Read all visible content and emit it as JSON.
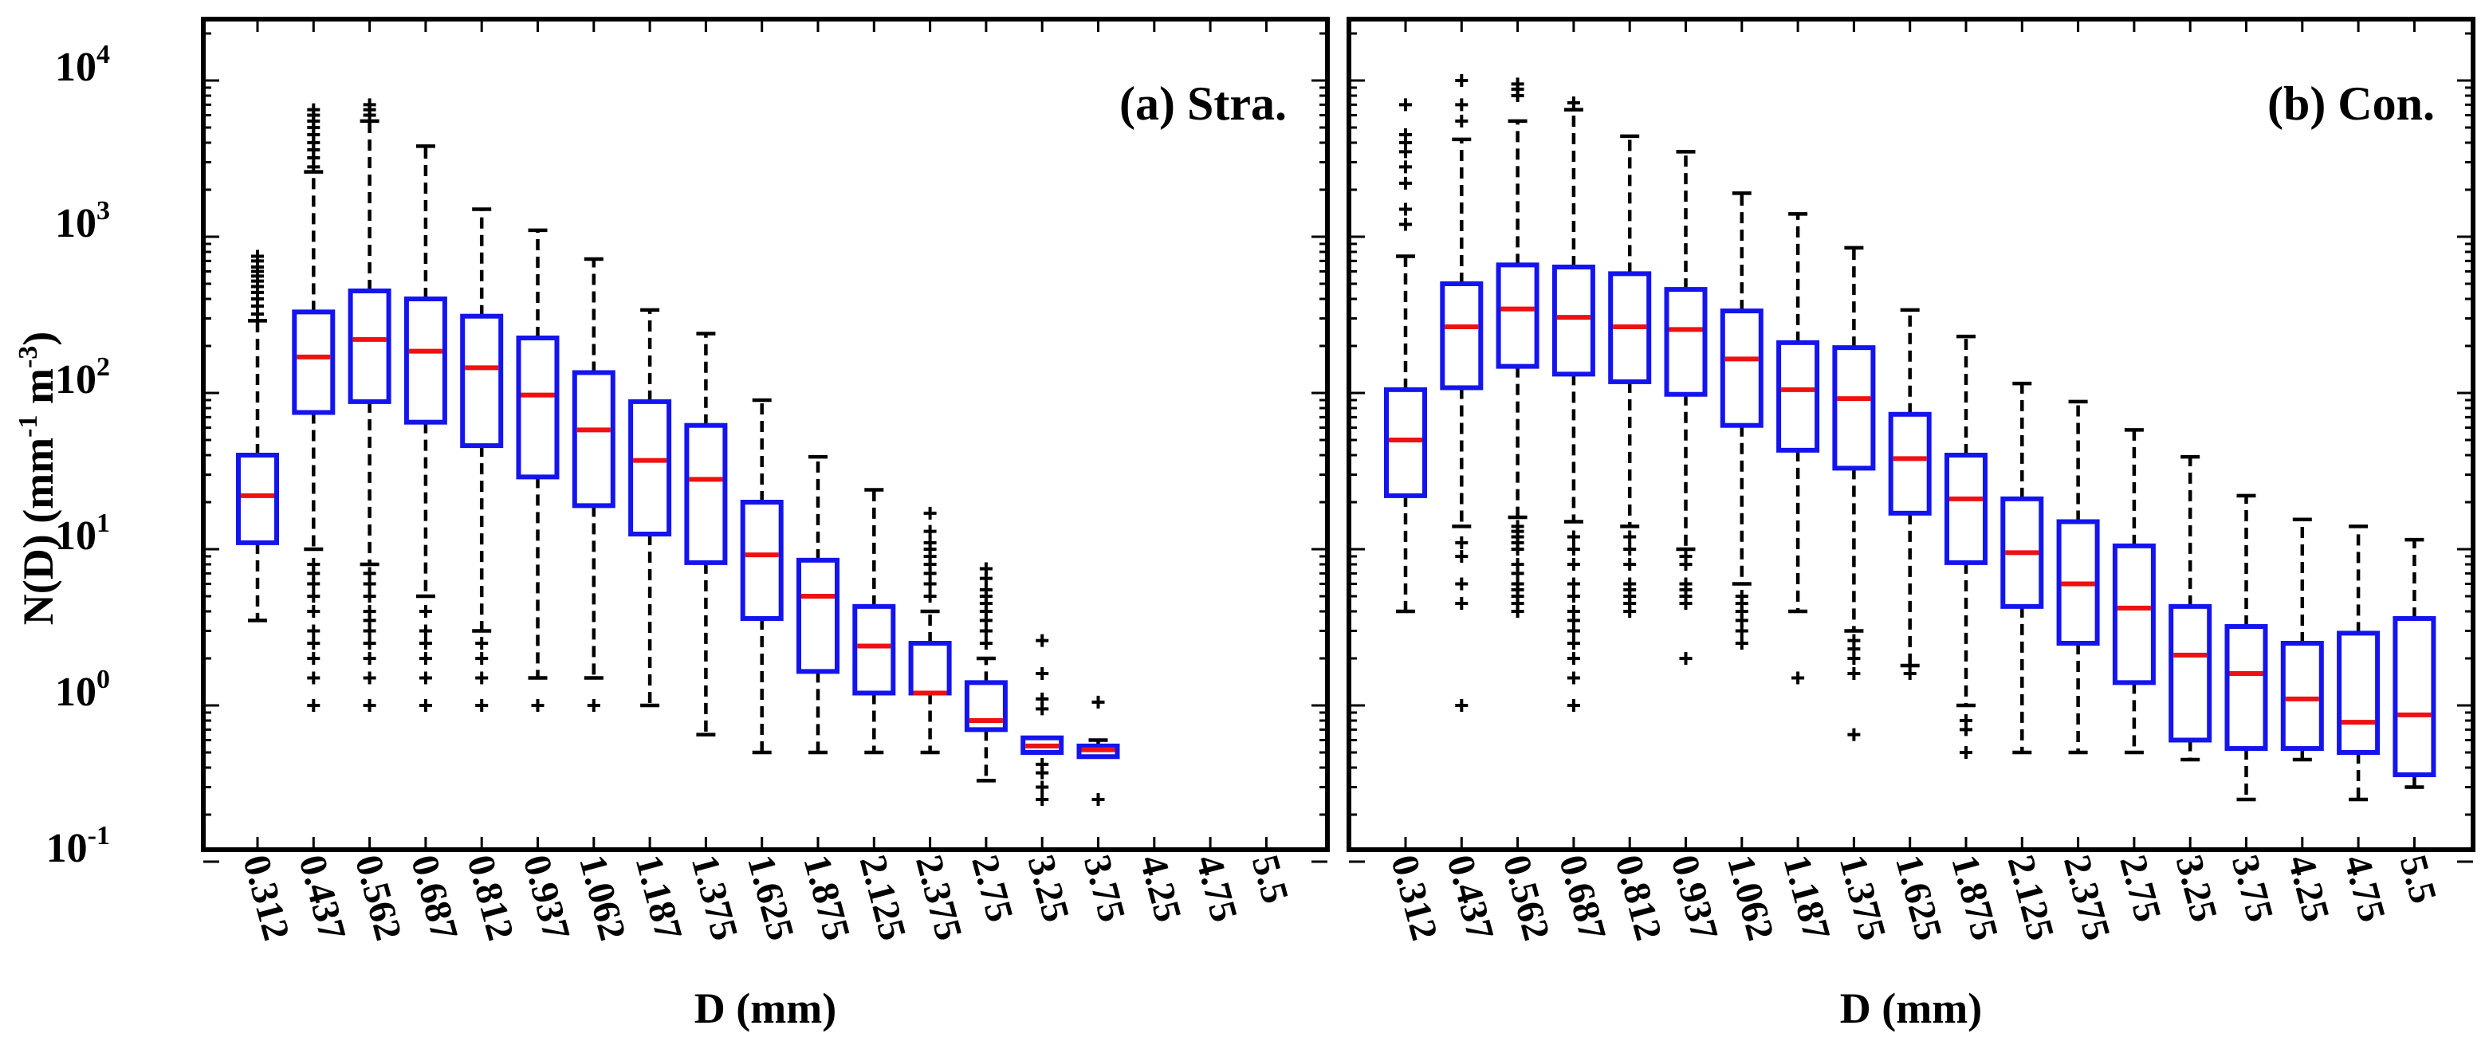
{
  "figure": {
    "ylabel_main": "N(D) (mm",
    "ylabel_exp1": "-1",
    "ylabel_mid": " m",
    "ylabel_exp2": "-3",
    "ylabel_close": ")",
    "y_tick_base": "10",
    "y_tick_exponents": [
      "-1",
      "0",
      "1",
      "2",
      "3",
      "4"
    ]
  },
  "chart_data": [
    {
      "type": "box",
      "panel": "a",
      "title": "(a) Stra.",
      "xlabel": "D (mm)",
      "yscale": "log",
      "ylim": [
        0.1,
        20000
      ],
      "categories": [
        "0.312",
        "0.437",
        "0.562",
        "0.687",
        "0.812",
        "0.937",
        "1.062",
        "1.187",
        "1.375",
        "1.625",
        "1.875",
        "2.125",
        "2.375",
        "2.75",
        "3.25",
        "3.75",
        "4.25",
        "4.75",
        "5.5"
      ],
      "boxes": [
        {
          "q1": 11,
          "med": 22,
          "q3": 40,
          "wlo": 3.5,
          "whi": 290,
          "outliers": [
            320,
            360,
            400,
            440,
            480,
            520,
            560,
            600,
            640,
            700,
            750
          ]
        },
        {
          "q1": 75,
          "med": 170,
          "q3": 330,
          "wlo": 10,
          "whi": 2600,
          "outliers": [
            1,
            1.5,
            2,
            2.5,
            3,
            4,
            5,
            6,
            7,
            8,
            2800,
            3200,
            3600,
            4000,
            4500,
            5000,
            5500,
            6000,
            6500
          ]
        },
        {
          "q1": 88,
          "med": 220,
          "q3": 450,
          "wlo": 8,
          "whi": 5500,
          "outliers": [
            1,
            1.5,
            2,
            2.5,
            3,
            3.5,
            4,
            5,
            6,
            7,
            6000,
            6500,
            7000
          ]
        },
        {
          "q1": 65,
          "med": 185,
          "q3": 400,
          "wlo": 5,
          "whi": 3800,
          "outliers": [
            1,
            1.5,
            2,
            2.5,
            3,
            4
          ]
        },
        {
          "q1": 46,
          "med": 145,
          "q3": 310,
          "wlo": 3,
          "whi": 1500,
          "outliers": [
            1,
            1.5,
            2,
            2.5
          ]
        },
        {
          "q1": 29,
          "med": 97,
          "q3": 225,
          "wlo": 1.5,
          "whi": 1100,
          "outliers": [
            1
          ]
        },
        {
          "q1": 19,
          "med": 58,
          "q3": 135,
          "wlo": 1.5,
          "whi": 720,
          "outliers": [
            1
          ]
        },
        {
          "q1": 12.5,
          "med": 37,
          "q3": 88,
          "wlo": 1,
          "whi": 340,
          "outliers": []
        },
        {
          "q1": 8.2,
          "med": 28,
          "q3": 62,
          "wlo": 0.65,
          "whi": 240,
          "outliers": []
        },
        {
          "q1": 3.6,
          "med": 9.2,
          "q3": 20,
          "wlo": 0.5,
          "whi": 90,
          "outliers": []
        },
        {
          "q1": 1.65,
          "med": 5,
          "q3": 8.5,
          "wlo": 0.5,
          "whi": 39,
          "outliers": []
        },
        {
          "q1": 1.2,
          "med": 2.4,
          "q3": 4.3,
          "wlo": 0.5,
          "whi": 24,
          "outliers": []
        },
        {
          "q1": 1.2,
          "med": 1.2,
          "q3": 2.5,
          "wlo": 0.5,
          "whi": 4,
          "outliers": [
            5,
            6,
            7,
            8,
            9,
            10,
            11,
            13,
            17
          ]
        },
        {
          "q1": 0.7,
          "med": 0.8,
          "q3": 1.4,
          "wlo": 0.33,
          "whi": 2,
          "outliers": [
            2.5,
            3,
            3.5,
            4,
            4.5,
            5,
            5.5,
            6.5,
            7.5
          ]
        },
        {
          "q1": 0.5,
          "med": 0.55,
          "q3": 0.62,
          "wlo": 0.5,
          "whi": 0.62,
          "outliers": [
            0.25,
            0.3,
            0.37,
            0.42,
            0.95,
            1.1,
            1.6,
            2.6
          ]
        },
        {
          "q1": 0.47,
          "med": 0.52,
          "q3": 0.55,
          "wlo": 0.47,
          "whi": 0.6,
          "outliers": [
            0.25,
            1.05
          ]
        },
        null,
        null,
        null
      ]
    },
    {
      "type": "box",
      "panel": "b",
      "title": "(b) Con.",
      "xlabel": "D (mm)",
      "yscale": "log",
      "ylim": [
        0.1,
        20000
      ],
      "categories": [
        "0.312",
        "0.437",
        "0.562",
        "0.687",
        "0.812",
        "0.937",
        "1.062",
        "1.187",
        "1.375",
        "1.625",
        "1.875",
        "2.125",
        "2.375",
        "2.75",
        "3.25",
        "3.75",
        "4.25",
        "4.75",
        "5.5"
      ],
      "boxes": [
        {
          "q1": 22,
          "med": 50,
          "q3": 105,
          "wlo": 4,
          "whi": 750,
          "outliers": [
            1200,
            1500,
            2200,
            2800,
            3500,
            4000,
            4500,
            7000
          ]
        },
        {
          "q1": 108,
          "med": 265,
          "q3": 500,
          "wlo": 14,
          "whi": 4200,
          "outliers": [
            1,
            4.5,
            6,
            9,
            11,
            5500,
            7000,
            10000
          ]
        },
        {
          "q1": 148,
          "med": 345,
          "q3": 660,
          "wlo": 16,
          "whi": 5500,
          "outliers": [
            4,
            4.5,
            5,
            5.5,
            6,
            7,
            8,
            10,
            11,
            12,
            13,
            14,
            8000,
            8800,
            9500
          ]
        },
        {
          "q1": 132,
          "med": 305,
          "q3": 640,
          "wlo": 15,
          "whi": 6500,
          "outliers": [
            1,
            1.5,
            2,
            2.5,
            3,
            3.5,
            4,
            5,
            6,
            8,
            10,
            12,
            7200
          ]
        },
        {
          "q1": 118,
          "med": 265,
          "q3": 580,
          "wlo": 14,
          "whi": 4400,
          "outliers": [
            4,
            4.5,
            5,
            5.5,
            6,
            8,
            10,
            12
          ]
        },
        {
          "q1": 98,
          "med": 255,
          "q3": 460,
          "wlo": 10,
          "whi": 3500,
          "outliers": [
            2,
            4.5,
            5,
            5.5,
            6,
            8,
            9
          ]
        },
        {
          "q1": 62,
          "med": 165,
          "q3": 335,
          "wlo": 6,
          "whi": 1900,
          "outliers": [
            2.5,
            3,
            3.5,
            4,
            4.5,
            5
          ]
        },
        {
          "q1": 43,
          "med": 105,
          "q3": 210,
          "wlo": 4,
          "whi": 1400,
          "outliers": [
            1.5
          ]
        },
        {
          "q1": 33,
          "med": 92,
          "q3": 195,
          "wlo": 3,
          "whi": 850,
          "outliers": [
            0.65,
            1.6,
            2,
            2.3,
            2.6
          ]
        },
        {
          "q1": 17,
          "med": 38,
          "q3": 73,
          "wlo": 1.8,
          "whi": 340,
          "outliers": [
            1.6
          ]
        },
        {
          "q1": 8.2,
          "med": 21,
          "q3": 40,
          "wlo": 1,
          "whi": 230,
          "outliers": [
            0.5,
            0.7,
            0.8
          ]
        },
        {
          "q1": 4.3,
          "med": 9.5,
          "q3": 21,
          "wlo": 0.5,
          "whi": 115,
          "outliers": []
        },
        {
          "q1": 2.5,
          "med": 6,
          "q3": 15,
          "wlo": 0.5,
          "whi": 88,
          "outliers": []
        },
        {
          "q1": 1.4,
          "med": 4.2,
          "q3": 10.5,
          "wlo": 0.5,
          "whi": 58,
          "outliers": []
        },
        {
          "q1": 0.6,
          "med": 2.1,
          "q3": 4.3,
          "wlo": 0.45,
          "whi": 39,
          "outliers": []
        },
        {
          "q1": 0.53,
          "med": 1.6,
          "q3": 3.2,
          "wlo": 0.25,
          "whi": 22,
          "outliers": []
        },
        {
          "q1": 0.53,
          "med": 1.1,
          "q3": 2.5,
          "wlo": 0.45,
          "whi": 15.5,
          "outliers": []
        },
        {
          "q1": 0.5,
          "med": 0.78,
          "q3": 2.9,
          "wlo": 0.25,
          "whi": 14,
          "outliers": []
        },
        {
          "q1": 0.36,
          "med": 0.87,
          "q3": 3.6,
          "wlo": 0.3,
          "whi": 11.5,
          "outliers": []
        }
      ]
    }
  ]
}
